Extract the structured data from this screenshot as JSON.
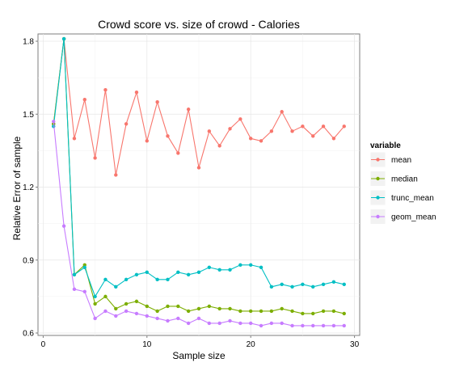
{
  "chart_data": {
    "type": "line",
    "title": "Crowd score vs. size of crowd -  Calories",
    "xlabel": "Sample size",
    "ylabel": "Relative Error of sample",
    "xlim": [
      -0.5,
      30.5
    ],
    "ylim": [
      0.59,
      1.83
    ],
    "x_ticks": [
      0,
      10,
      20,
      30
    ],
    "x_tick_labels": [
      "0",
      "10",
      "20",
      "30"
    ],
    "y_ticks": [
      0.6,
      0.9,
      1.2,
      1.5,
      1.8
    ],
    "y_tick_labels": [
      "0.6",
      "0.9",
      "1.2",
      "1.5",
      "1.8"
    ],
    "grid": true,
    "legend": {
      "title": "variable",
      "position": "right"
    },
    "x": [
      1,
      2,
      3,
      4,
      5,
      6,
      7,
      8,
      9,
      10,
      11,
      12,
      13,
      14,
      15,
      16,
      17,
      18,
      19,
      20,
      21,
      22,
      23,
      24,
      25,
      26,
      27,
      28,
      29
    ],
    "series": [
      {
        "name": "mean",
        "color": "#f8766d",
        "values": [
          1.46,
          1.81,
          1.4,
          1.56,
          1.32,
          1.6,
          1.25,
          1.46,
          1.59,
          1.39,
          1.55,
          1.41,
          1.34,
          1.52,
          1.28,
          1.43,
          1.37,
          1.44,
          1.48,
          1.4,
          1.39,
          1.43,
          1.51,
          1.43,
          1.45,
          1.41,
          1.45,
          1.4,
          1.45
        ]
      },
      {
        "name": "median",
        "color": "#7cae00",
        "values": [
          1.46,
          1.81,
          0.84,
          0.88,
          0.72,
          0.75,
          0.7,
          0.72,
          0.73,
          0.71,
          0.69,
          0.71,
          0.71,
          0.69,
          0.7,
          0.71,
          0.7,
          0.7,
          0.69,
          0.69,
          0.69,
          0.69,
          0.7,
          0.69,
          0.68,
          0.68,
          0.69,
          0.69,
          0.68
        ]
      },
      {
        "name": "trunc_mean",
        "color": "#00bfc4",
        "values": [
          1.45,
          1.81,
          0.84,
          0.87,
          0.75,
          0.82,
          0.79,
          0.82,
          0.84,
          0.85,
          0.82,
          0.82,
          0.85,
          0.84,
          0.85,
          0.87,
          0.86,
          0.86,
          0.88,
          0.88,
          0.87,
          0.79,
          0.8,
          0.79,
          0.8,
          0.79,
          0.8,
          0.81,
          0.8
        ]
      },
      {
        "name": "geom_mean",
        "color": "#c77cff",
        "values": [
          1.47,
          1.04,
          0.78,
          0.77,
          0.66,
          0.69,
          0.67,
          0.69,
          0.68,
          0.67,
          0.66,
          0.65,
          0.66,
          0.64,
          0.66,
          0.64,
          0.64,
          0.65,
          0.64,
          0.64,
          0.63,
          0.64,
          0.64,
          0.63,
          0.63,
          0.63,
          0.63,
          0.63,
          0.63
        ]
      }
    ]
  }
}
